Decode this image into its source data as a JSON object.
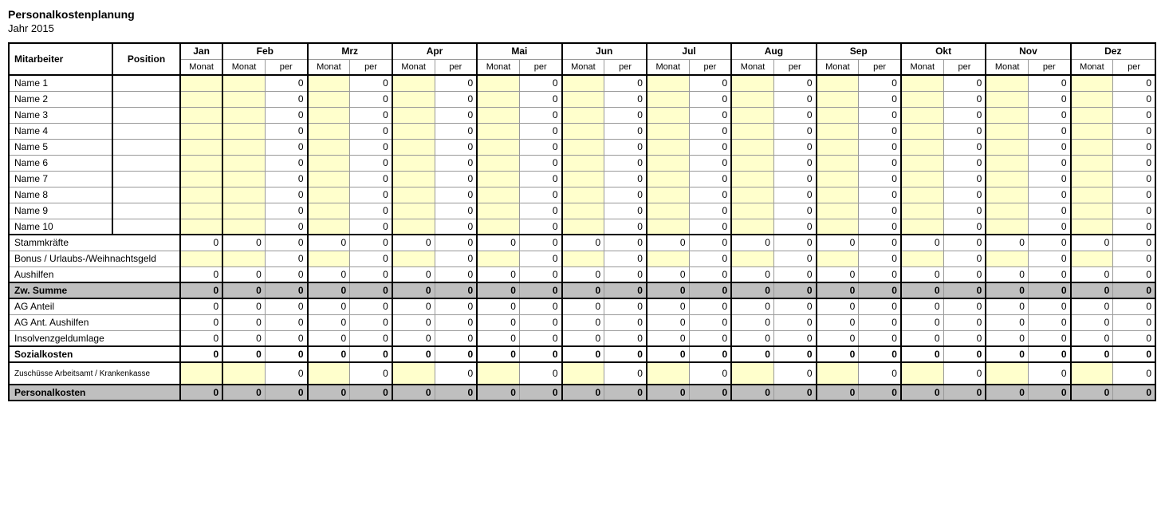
{
  "title": "Personalkostenplanung",
  "subtitle": "Jahr 2015",
  "header": {
    "employee": "Mitarbeiter",
    "position": "Position",
    "months": [
      "Jan",
      "Feb",
      "Mrz",
      "Apr",
      "Mai",
      "Jun",
      "Jul",
      "Aug",
      "Sep",
      "Okt",
      "Nov",
      "Dez"
    ],
    "sub_monat": "Monat",
    "sub_per": "per"
  },
  "colors": {
    "input_bg": "#ffffcc",
    "subtotal_bg": "#bfbfbf",
    "border": "#000000",
    "grid": "#999999",
    "page_bg": "#ffffff"
  },
  "employees": [
    {
      "name": "Name 1"
    },
    {
      "name": "Name 2"
    },
    {
      "name": "Name 3"
    },
    {
      "name": "Name 4"
    },
    {
      "name": "Name 5"
    },
    {
      "name": "Name 6"
    },
    {
      "name": "Name 7"
    },
    {
      "name": "Name 8"
    },
    {
      "name": "Name 9"
    },
    {
      "name": "Name 10"
    }
  ],
  "employee_per_value": 0,
  "summary_rows": [
    {
      "key": "stammkraefte",
      "label": "Stammkräfte",
      "type": "calc_full",
      "bold": false
    },
    {
      "key": "bonus",
      "label": "Bonus / Urlaubs-/Weihnachtsgeld",
      "type": "input_like_emp",
      "bold": false
    },
    {
      "key": "aushilfen",
      "label": "Aushilfen",
      "type": "calc_full",
      "bold": false
    },
    {
      "key": "zwsumme",
      "label": "Zw. Summe",
      "type": "grey_full",
      "bold": true
    },
    {
      "key": "aganteil",
      "label": "AG Anteil",
      "type": "calc_full",
      "bold": false
    },
    {
      "key": "agaush",
      "label": "AG Ant. Aushilfen",
      "type": "calc_full",
      "bold": false
    },
    {
      "key": "insolvenz",
      "label": "Insolvenzgeldumlage",
      "type": "calc_full",
      "bold": false
    },
    {
      "key": "sozial",
      "label": "Sozialkosten",
      "type": "calc_full",
      "bold": true
    },
    {
      "key": "zuschuss",
      "label": "Zuschüsse Arbeitsamt / Krankenkasse",
      "type": "input_like_emp",
      "bold": false,
      "small": true
    },
    {
      "key": "personalkosten",
      "label": "Personalkosten",
      "type": "grey_full",
      "bold": true
    }
  ],
  "zero": 0
}
